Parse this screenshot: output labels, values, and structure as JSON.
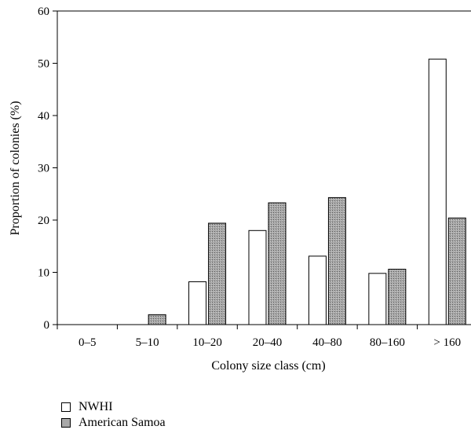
{
  "chart_data": {
    "type": "bar",
    "categories": [
      "0–5",
      "5–10",
      "10–20",
      "20–40",
      "40–80",
      "80–160",
      "> 160"
    ],
    "series": [
      {
        "name": "NWHI",
        "values": [
          0,
          0,
          8.2,
          18.0,
          13.1,
          9.8,
          50.8
        ],
        "fill": "#ffffff"
      },
      {
        "name": "American Samoa",
        "values": [
          0,
          1.9,
          19.4,
          23.3,
          24.3,
          10.6,
          20.4
        ],
        "fill": "#a8a8a8"
      }
    ],
    "xlabel": "Colony size class (cm)",
    "ylabel": "Proportion of colonies (%)",
    "ylim": [
      0,
      60
    ],
    "yticks": [
      0,
      10,
      20,
      30,
      40,
      50,
      60
    ],
    "grid": false,
    "legend_position": "bottom-left"
  }
}
